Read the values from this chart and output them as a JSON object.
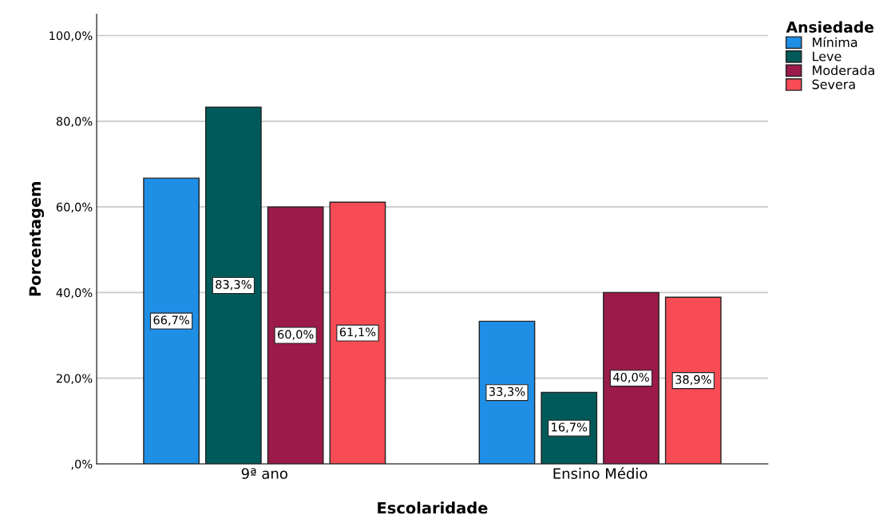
{
  "chart_data": {
    "type": "bar",
    "xlabel": "Escolaridade",
    "ylabel": "Porcentagem",
    "legend_title": "Ansiedade",
    "categories": [
      "9ª ano",
      "Ensino Médio"
    ],
    "series": [
      {
        "name": "Mínima",
        "color": "#1f8fe6",
        "values": [
          66.7,
          33.3
        ],
        "value_labels": [
          "66,7%",
          "33,3%"
        ]
      },
      {
        "name": "Leve",
        "color": "#005a5a",
        "values": [
          83.3,
          16.7
        ],
        "value_labels": [
          "83,3%",
          "16,7%"
        ]
      },
      {
        "name": "Moderada",
        "color": "#9b1a4a",
        "values": [
          60.0,
          40.0
        ],
        "value_labels": [
          "60,0%",
          "40,0%"
        ]
      },
      {
        "name": "Severa",
        "color": "#f74b55",
        "values": [
          61.1,
          38.9
        ],
        "value_labels": [
          "61,1%",
          "38,9%"
        ]
      }
    ],
    "ylim": [
      0,
      105
    ],
    "yticks": [
      {
        "value": 0,
        "label": ",0%"
      },
      {
        "value": 20,
        "label": "20,0%"
      },
      {
        "value": 40,
        "label": "40,0%"
      },
      {
        "value": 60,
        "label": "60,0%"
      },
      {
        "value": 80,
        "label": "80,0%"
      },
      {
        "value": 100,
        "label": "100,0%"
      }
    ],
    "grid": "y",
    "legend": "top right"
  }
}
